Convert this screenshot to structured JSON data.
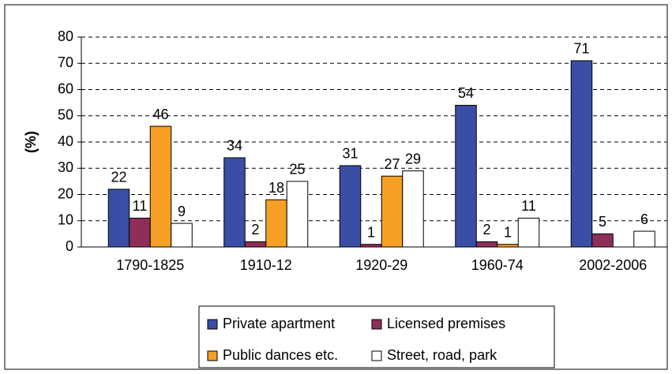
{
  "chart_data": {
    "type": "bar",
    "y_label": "(%)",
    "categories": [
      "1790-1825",
      "1910-12",
      "1920-29",
      "1960-74",
      "2002-2006"
    ],
    "series": [
      {
        "name": "Private apartment",
        "color": "#3a4ea6",
        "values": [
          22,
          34,
          31,
          54,
          71
        ]
      },
      {
        "name": "Licensed premises",
        "color": "#8e2f5a",
        "values": [
          11,
          2,
          1,
          2,
          5
        ]
      },
      {
        "name": "Public dances etc.",
        "color": "#f5a025",
        "values": [
          46,
          18,
          27,
          1,
          null
        ]
      },
      {
        "name": "Street, road, park",
        "color": "#ffffff",
        "values": [
          9,
          25,
          29,
          11,
          6
        ]
      }
    ],
    "ylim": [
      0,
      80
    ],
    "yticks": [
      0,
      10,
      20,
      30,
      40,
      50,
      60,
      70,
      80
    ],
    "grid": true,
    "legend": "bottom"
  }
}
